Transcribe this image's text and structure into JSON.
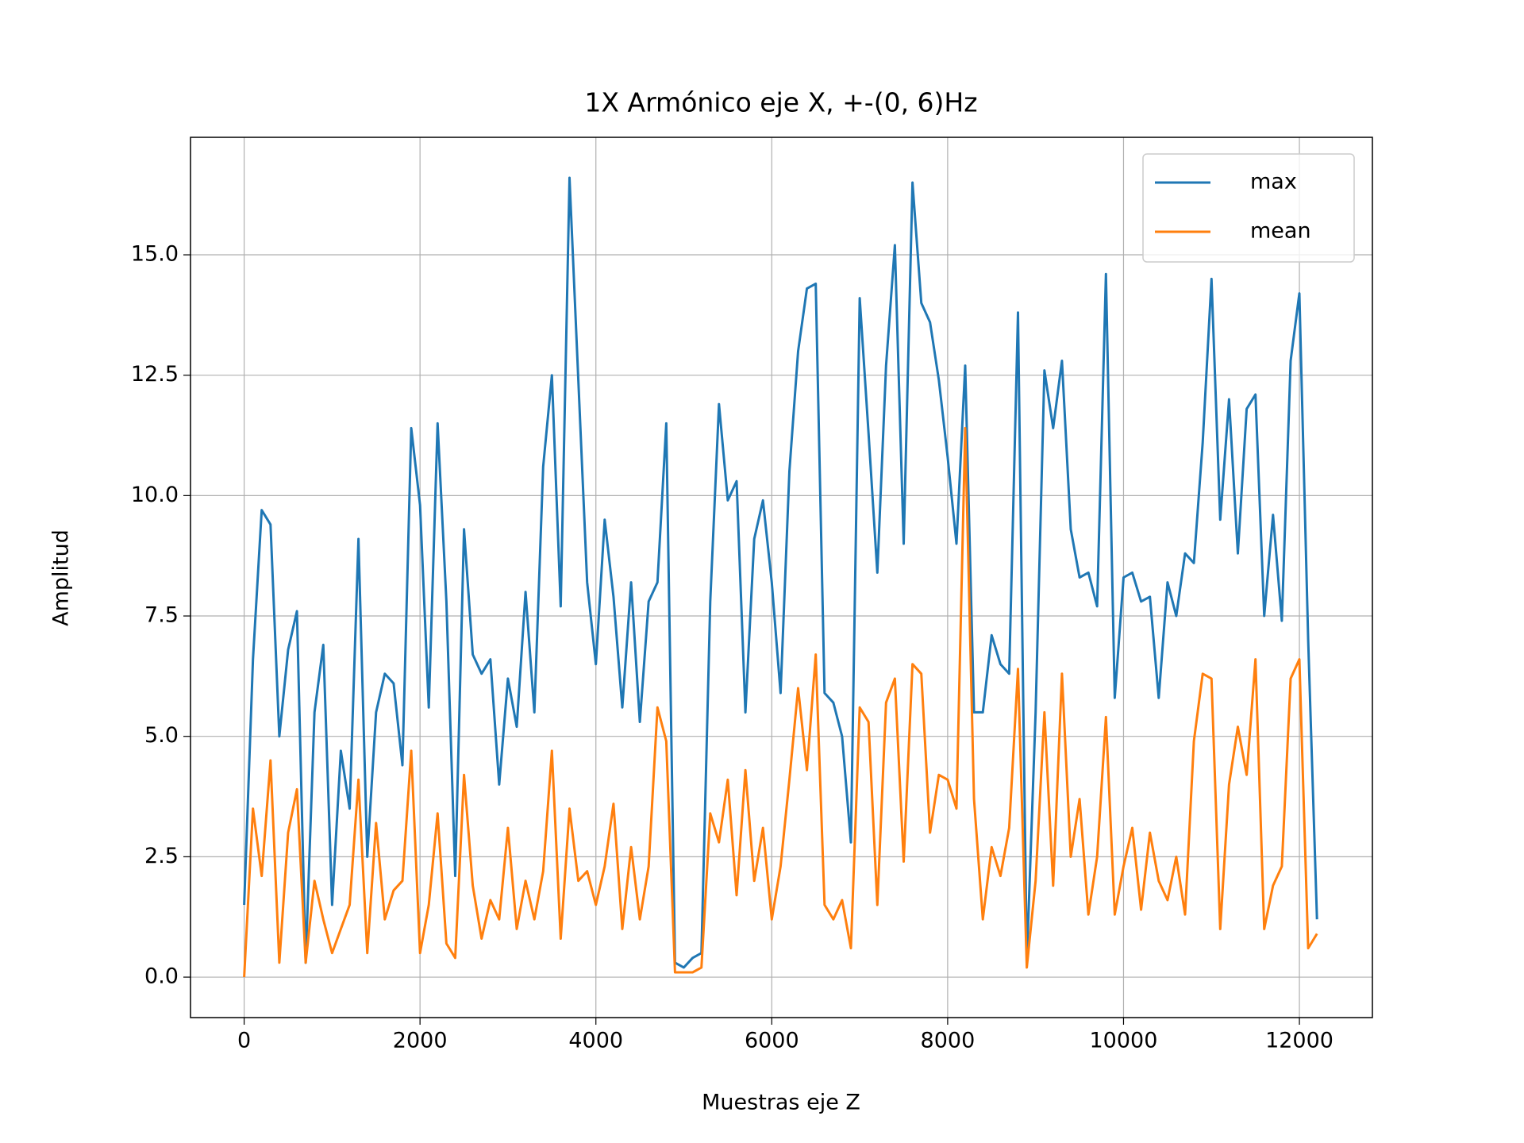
{
  "chart_data": {
    "type": "line",
    "title": "1X Armónico eje X, +-(0, 6)Hz",
    "xlabel": "Muestras eje Z",
    "ylabel": "Amplitud",
    "x": [
      0,
      100,
      200,
      300,
      400,
      500,
      600,
      700,
      800,
      900,
      1000,
      1100,
      1200,
      1300,
      1400,
      1500,
      1600,
      1700,
      1800,
      1900,
      2000,
      2100,
      2200,
      2300,
      2400,
      2500,
      2600,
      2700,
      2800,
      2900,
      3000,
      3100,
      3200,
      3300,
      3400,
      3500,
      3600,
      3700,
      3800,
      3900,
      4000,
      4100,
      4200,
      4300,
      4400,
      4500,
      4600,
      4700,
      4800,
      4900,
      5000,
      5100,
      5200,
      5300,
      5400,
      5500,
      5600,
      5700,
      5800,
      5900,
      6000,
      6100,
      6200,
      6300,
      6400,
      6500,
      6600,
      6700,
      6800,
      6900,
      7000,
      7100,
      7200,
      7300,
      7400,
      7500,
      7600,
      7700,
      7800,
      7900,
      8000,
      8100,
      8200,
      8300,
      8400,
      8500,
      8600,
      8700,
      8800,
      8900,
      9000,
      9100,
      9200,
      9300,
      9400,
      9500,
      9600,
      9700,
      9800,
      9900,
      10000,
      10100,
      10200,
      10300,
      10400,
      10500,
      10600,
      10700,
      10800,
      10900,
      11000,
      11100,
      11200,
      11300,
      11400,
      11500,
      11600,
      11700,
      11800,
      11900,
      12000,
      12100,
      12200
    ],
    "series": [
      {
        "name": "max",
        "color": "#1f77b4",
        "values": [
          1.5,
          6.6,
          9.7,
          9.4,
          5,
          6.8,
          7.6,
          0.3,
          5.5,
          6.9,
          1.5,
          4.7,
          3.5,
          9.1,
          2.5,
          5.5,
          6.3,
          6.1,
          4.4,
          11.4,
          9.8,
          5.6,
          11.5,
          7.8,
          2.1,
          9.3,
          6.7,
          6.3,
          6.6,
          4.0,
          6.2,
          5.2,
          8.0,
          5.5,
          10.6,
          12.5,
          7.7,
          16.6,
          12.4,
          8.2,
          6.5,
          9.5,
          7.9,
          5.6,
          8.2,
          5.3,
          7.8,
          8.2,
          11.5,
          0.3,
          0.2,
          0.4,
          0.5,
          7.8,
          11.9,
          9.9,
          10.3,
          5.5,
          9.1,
          9.9,
          8.2,
          5.9,
          10.5,
          13.0,
          14.3,
          14.4,
          5.9,
          5.7,
          5.0,
          2.8,
          14.1,
          11.3,
          8.4,
          12.7,
          15.2,
          9.0,
          16.5,
          14.0,
          13.6,
          12.4,
          10.8,
          9.0,
          12.7,
          5.5,
          5.5,
          7.1,
          6.5,
          6.3,
          13.8,
          0.3,
          5.5,
          12.6,
          11.4,
          12.8,
          9.3,
          8.3,
          8.4,
          7.7,
          14.6,
          5.8,
          8.3,
          8.4,
          7.8,
          7.9,
          5.8,
          8.2,
          7.5,
          8.8,
          8.6,
          11.1,
          14.5,
          9.5,
          12.0,
          8.8,
          11.8,
          12.1,
          7.5,
          9.6,
          7.4,
          12.8,
          14.2,
          7.0,
          1.2
        ]
      },
      {
        "name": "mean",
        "color": "#ff7f0e",
        "values": [
          0.0,
          3.5,
          2.1,
          4.5,
          0.3,
          3.0,
          3.9,
          0.3,
          2.0,
          1.2,
          0.5,
          1.0,
          1.5,
          4.1,
          0.5,
          3.2,
          1.2,
          1.8,
          2.0,
          4.7,
          0.5,
          1.5,
          3.4,
          0.7,
          0.4,
          4.2,
          1.9,
          0.8,
          1.6,
          1.2,
          3.1,
          1.0,
          2.0,
          1.2,
          2.2,
          4.7,
          0.8,
          3.5,
          2.0,
          2.2,
          1.5,
          2.3,
          3.6,
          1.0,
          2.7,
          1.2,
          2.3,
          5.6,
          4.9,
          0.1,
          0.1,
          0.1,
          0.2,
          3.4,
          2.8,
          4.1,
          1.7,
          4.3,
          2.0,
          3.1,
          1.2,
          2.3,
          4.1,
          6.0,
          4.3,
          6.7,
          1.5,
          1.2,
          1.6,
          0.6,
          5.6,
          5.3,
          1.5,
          5.7,
          6.2,
          2.4,
          6.5,
          6.3,
          3.0,
          4.2,
          4.1,
          3.5,
          11.4,
          3.7,
          1.2,
          2.7,
          2.1,
          3.1,
          6.4,
          0.2,
          2.0,
          5.5,
          1.9,
          6.3,
          2.5,
          3.7,
          1.3,
          2.5,
          5.4,
          1.3,
          2.3,
          3.1,
          1.4,
          3.0,
          2.0,
          1.6,
          2.5,
          1.3,
          4.9,
          6.3,
          6.2,
          1.0,
          4.0,
          5.2,
          4.2,
          6.6,
          1.0,
          1.9,
          2.3,
          6.2,
          6.6,
          0.6,
          0.9
        ]
      }
    ],
    "xlim": [
      -610,
      12830
    ],
    "ylim": [
      -0.84,
      17.44
    ],
    "xticks": [
      0,
      2000,
      4000,
      6000,
      8000,
      10000,
      12000
    ],
    "yticks": [
      {
        "value": 0,
        "label": "0.0"
      },
      2.5,
      {
        "value": 5,
        "label": "5.0"
      },
      7.5,
      {
        "value": 10,
        "label": "10.0"
      },
      12.5,
      {
        "value": 15,
        "label": "15.0"
      }
    ],
    "grid": true,
    "legend": "upper right"
  }
}
